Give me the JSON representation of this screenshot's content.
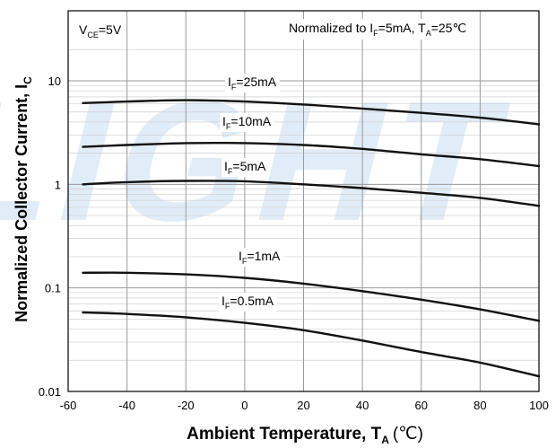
{
  "chart_data": {
    "type": "line",
    "title": "",
    "xlabel": "Ambient Temperature, T",
    "xlabel_sub": "A",
    "xlabel_unit": "(℃)",
    "ylabel": "Normalized Collector Current, I",
    "ylabel_sub": "C",
    "xlim": [
      -60,
      100
    ],
    "ylim": [
      0.01,
      30
    ],
    "y_scale": "log",
    "grid": true,
    "x_ticks": [
      -60,
      -40,
      -20,
      0,
      20,
      40,
      60,
      80,
      100
    ],
    "x_tick_labels": [
      "-60",
      "-40",
      "-20",
      "0",
      "20",
      "40",
      "60",
      "80",
      "100"
    ],
    "y_ticks": [
      0.01,
      0.1,
      1,
      10
    ],
    "y_tick_labels": [
      "0.01",
      "0.1",
      "1",
      "10"
    ],
    "condition_left": {
      "main": "V",
      "sub": "CE",
      "tail": "=5V"
    },
    "condition_right": {
      "p1": "Normalized to I",
      "s1": "F",
      "p2": "=5mA, T",
      "s2": "A",
      "p3": "=25℃"
    },
    "watermark": "LIGHT",
    "colors": {
      "curve": "#111111",
      "grid": "#9a9a9a",
      "minor_grid": "#d0d0d0",
      "watermark": "#d6e6f6"
    },
    "series": [
      {
        "label_main": "I",
        "label_sub": "F",
        "label_tail": "=25mA",
        "x": [
          -55,
          -40,
          -20,
          0,
          20,
          40,
          60,
          80,
          100
        ],
        "y": [
          6.1,
          6.3,
          6.5,
          6.3,
          5.9,
          5.4,
          4.9,
          4.4,
          3.8
        ]
      },
      {
        "label_main": "I",
        "label_sub": "F",
        "label_tail": "=10mA",
        "x": [
          -55,
          -40,
          -20,
          0,
          20,
          40,
          60,
          80,
          100
        ],
        "y": [
          2.3,
          2.4,
          2.5,
          2.5,
          2.4,
          2.2,
          1.95,
          1.75,
          1.5
        ]
      },
      {
        "label_main": "I",
        "label_sub": "F",
        "label_tail": "=5mA",
        "x": [
          -55,
          -40,
          -20,
          0,
          20,
          40,
          60,
          80,
          100
        ],
        "y": [
          1.0,
          1.05,
          1.08,
          1.07,
          1.0,
          0.92,
          0.83,
          0.74,
          0.62
        ]
      },
      {
        "label_main": "I",
        "label_sub": "F",
        "label_tail": "=1mA",
        "x": [
          -55,
          -40,
          -20,
          0,
          20,
          40,
          60,
          80,
          100
        ],
        "y": [
          0.14,
          0.14,
          0.135,
          0.125,
          0.11,
          0.093,
          0.077,
          0.062,
          0.048
        ]
      },
      {
        "label_main": "I",
        "label_sub": "F",
        "label_tail": "=0.5mA",
        "x": [
          -55,
          -40,
          -20,
          0,
          20,
          40,
          60,
          80,
          100
        ],
        "y": [
          0.058,
          0.056,
          0.052,
          0.046,
          0.039,
          0.031,
          0.024,
          0.019,
          0.014
        ]
      }
    ]
  }
}
